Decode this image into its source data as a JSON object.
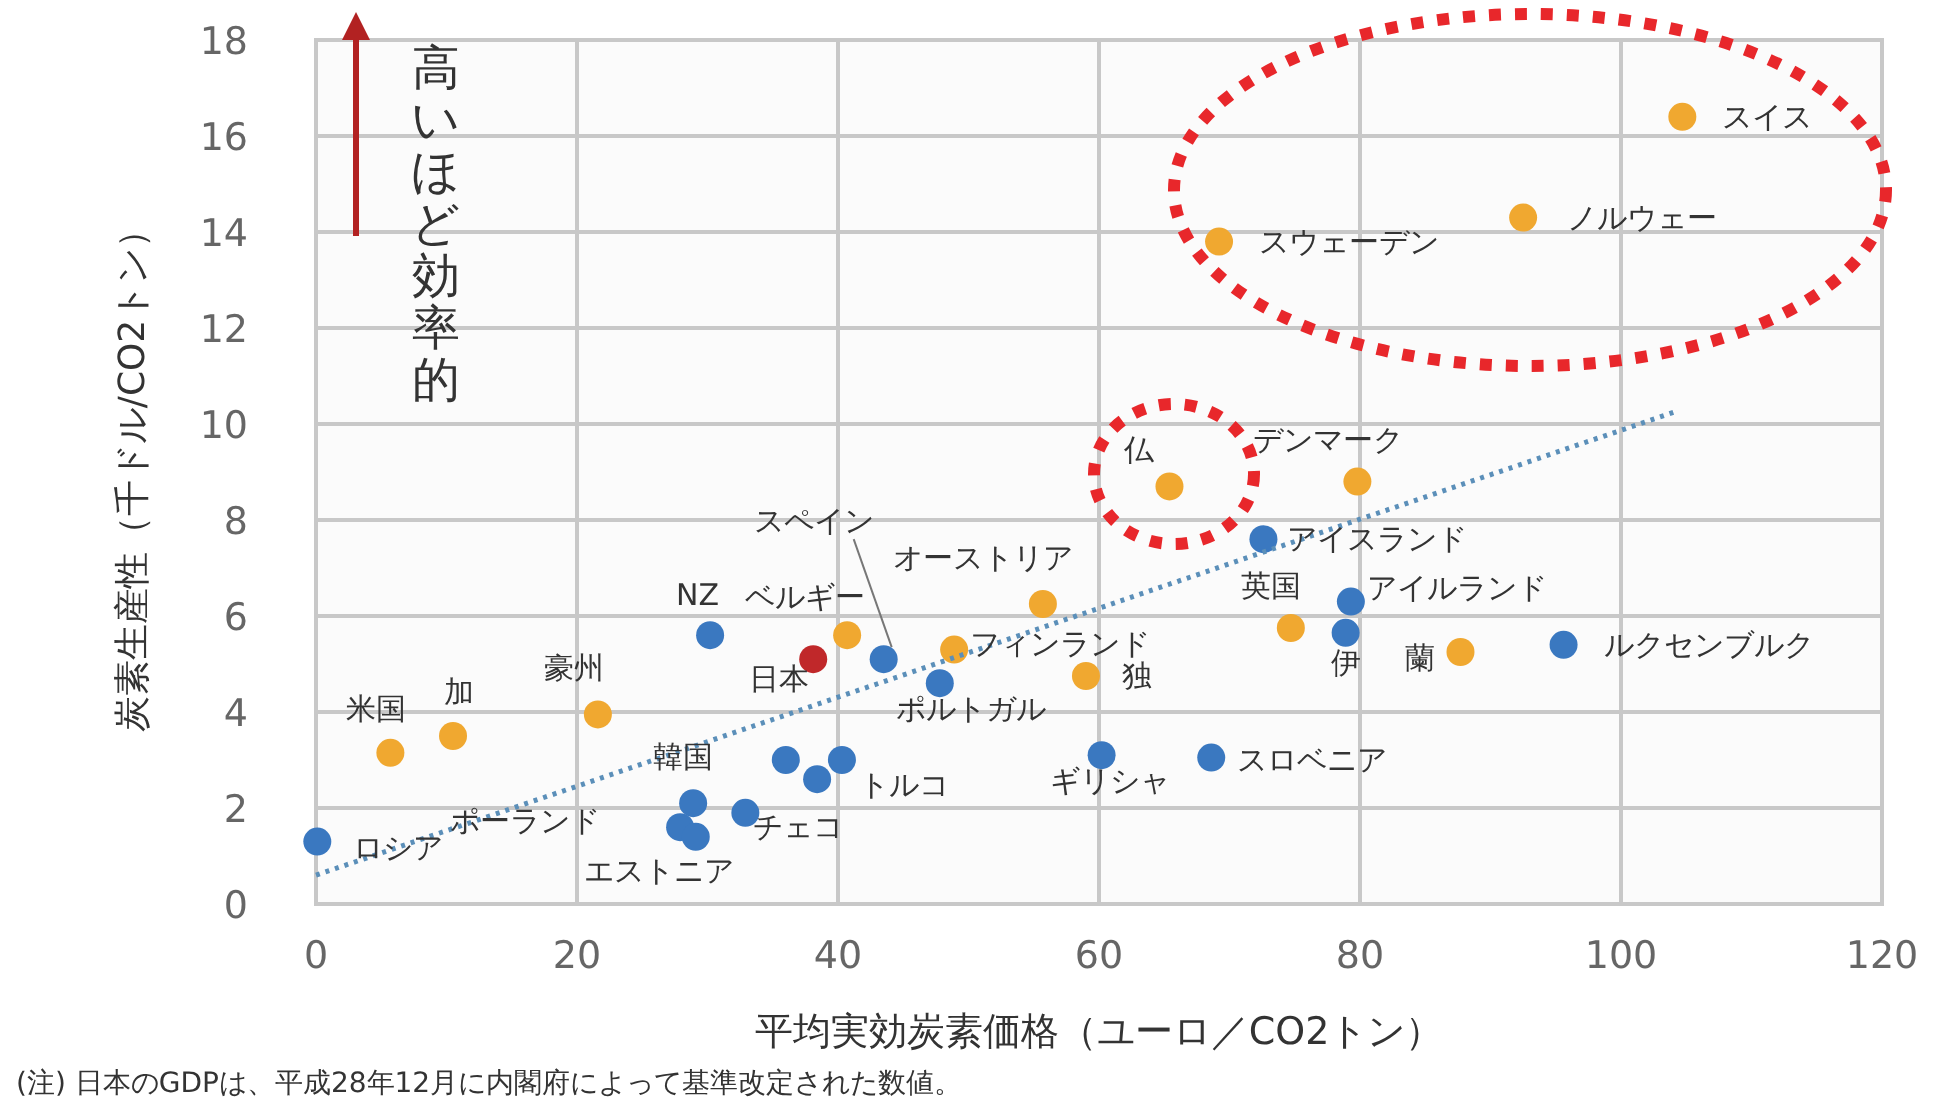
{
  "chart_data": {
    "type": "scatter",
    "xlabel": "平均実効炭素価格（ユーロ／CO2トン）",
    "ylabel": "炭素生産性（千ドル/CO2トン）",
    "xlim": [
      0,
      120
    ],
    "ylim": [
      0,
      18
    ],
    "xticks": [
      0,
      20,
      40,
      60,
      80,
      100,
      120
    ],
    "yticks": [
      0,
      2,
      4,
      6,
      8,
      10,
      12,
      14,
      16,
      18
    ],
    "grid": true,
    "marker": "circle",
    "series": [
      {
        "color": "#f0a830",
        "x": [
          104.7,
          92.5,
          69.2,
          65.4,
          79.8,
          74.7,
          87.7,
          55.7,
          48.9,
          59,
          40.7,
          21.6,
          10.5,
          5.7
        ],
        "values": [
          16.4,
          14.3,
          13.8,
          8.7,
          8.8,
          5.75,
          5.25,
          6.25,
          5.3,
          4.75,
          5.6,
          3.95,
          3.5,
          3.15
        ]
      },
      {
        "color": "#3a78c0",
        "x": [
          72.6,
          79.3,
          78.9,
          95.6,
          47.8,
          43.5,
          30.2,
          0.1,
          28.9,
          27.9,
          29.1,
          32.9,
          36,
          38.4,
          40.3,
          60.2,
          68.6
        ],
        "values": [
          7.6,
          6.3,
          5.65,
          5.4,
          4.6,
          5.1,
          5.6,
          1.3,
          2.1,
          1.6,
          1.4,
          1.9,
          3.0,
          2.6,
          3.0,
          3.1,
          3.05
        ]
      },
      {
        "color": "#c0282a",
        "x": [
          38.1
        ],
        "values": [
          5.1
        ]
      },
      {
        "type": "line",
        "line_style": "dotted",
        "marker": "none",
        "color": "#5b8fb9",
        "x": [
          0,
          104.1
        ],
        "values": [
          0.6,
          10.25
        ]
      }
    ],
    "annotations": [
      {
        "text": "スイス",
        "x": 104.7,
        "y": 16.4
      },
      {
        "text": "ノルウェー",
        "x": 92.5,
        "y": 14.3
      },
      {
        "text": "スウェーデン",
        "x": 69.2,
        "y": 13.8
      },
      {
        "text": "仏",
        "x": 65.4,
        "y": 8.7
      },
      {
        "text": "デンマーク",
        "x": 79.8,
        "y": 8.8
      },
      {
        "text": "アイスランド",
        "x": 72.6,
        "y": 7.6
      },
      {
        "text": "アイルランド",
        "x": 79.3,
        "y": 6.3
      },
      {
        "text": "英国",
        "x": 74.7,
        "y": 5.75
      },
      {
        "text": "伊",
        "x": 78.9,
        "y": 5.65
      },
      {
        "text": "蘭",
        "x": 87.7,
        "y": 5.25
      },
      {
        "text": "ルクセンブルク",
        "x": 95.6,
        "y": 5.4
      },
      {
        "text": "オーストリア",
        "x": 55.7,
        "y": 6.25
      },
      {
        "text": "フィンランド",
        "x": 48.9,
        "y": 5.3
      },
      {
        "text": "独",
        "x": 59,
        "y": 4.75
      },
      {
        "text": "ポルトガル",
        "x": 47.8,
        "y": 4.6
      },
      {
        "text": "ベルギー",
        "x": 40.7,
        "y": 5.6
      },
      {
        "text": "NZ",
        "x": 30.2,
        "y": 5.6
      },
      {
        "text": "スペイン",
        "x": 43.5,
        "y": 5.1
      },
      {
        "text": "日本",
        "x": 38.1,
        "y": 5.1
      },
      {
        "text": "豪州",
        "x": 21.6,
        "y": 3.95
      },
      {
        "text": "加",
        "x": 10.5,
        "y": 3.5
      },
      {
        "text": "米国",
        "x": 5.7,
        "y": 3.15
      },
      {
        "text": "ロシア",
        "x": 0.1,
        "y": 1.3
      },
      {
        "text": "韓国",
        "x": 28.9,
        "y": 2.1
      },
      {
        "text": "ポーランド",
        "x": 27.9,
        "y": 1.6
      },
      {
        "text": "エストニア",
        "x": 29.1,
        "y": 1.4
      },
      {
        "text": "チェコ",
        "x": 32.9,
        "y": 1.9
      },
      {
        "text": "トルコ",
        "x": 38.4,
        "y": 2.6
      },
      {
        "text": "ギリシャ",
        "x": 60.2,
        "y": 3.1
      },
      {
        "text": "スロベニア",
        "x": 68.6,
        "y": 3.05
      },
      "高いほど効率的",
      "(注) 日本のGDPは、平成28年12月に内閣府によって基準改定された数値。"
    ]
  }
}
